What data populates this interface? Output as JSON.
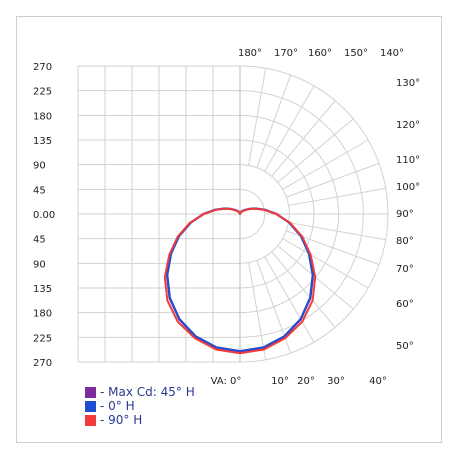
{
  "chart_data": {
    "type": "polar",
    "left_scale_labels": [
      "270",
      "225",
      "180",
      "135",
      "90",
      "45",
      "0.00",
      "45",
      "90",
      "135",
      "180",
      "225",
      "270"
    ],
    "top_angle_labels": [
      "180°",
      "170°",
      "160°",
      "150°",
      "140°"
    ],
    "right_angle_labels": [
      "130°",
      "120°",
      "110°",
      "100°",
      "90°",
      "80°",
      "70°",
      "60°",
      "50°"
    ],
    "bottom_angle_labels": [
      "VA: 0°",
      "10°",
      "20°",
      "30°",
      "40°"
    ],
    "series": [
      {
        "name": "- Max Cd: 45° H",
        "color": "#7b2d9e",
        "points": [
          [
            0,
            252
          ],
          [
            10,
            248
          ],
          [
            20,
            238
          ],
          [
            30,
            222
          ],
          [
            40,
            200
          ],
          [
            50,
            174
          ],
          [
            60,
            146
          ],
          [
            70,
            119
          ],
          [
            80,
            92
          ],
          [
            90,
            67
          ],
          [
            100,
            46
          ],
          [
            110,
            30
          ],
          [
            120,
            19
          ],
          [
            130,
            12
          ],
          [
            140,
            8
          ],
          [
            150,
            5
          ],
          [
            160,
            3
          ],
          [
            170,
            1
          ],
          [
            180,
            0
          ]
        ]
      },
      {
        "name": "- 0° H",
        "color": "#1f4fd0",
        "points": [
          [
            0,
            250
          ],
          [
            10,
            247
          ],
          [
            20,
            237
          ],
          [
            30,
            221
          ],
          [
            40,
            199
          ],
          [
            50,
            173
          ],
          [
            60,
            145
          ],
          [
            70,
            118
          ],
          [
            80,
            91
          ],
          [
            90,
            66
          ],
          [
            100,
            45
          ],
          [
            110,
            29
          ],
          [
            120,
            18
          ],
          [
            130,
            11
          ],
          [
            140,
            7
          ],
          [
            150,
            4
          ],
          [
            160,
            2
          ],
          [
            170,
            1
          ],
          [
            180,
            0
          ]
        ]
      },
      {
        "name": "- 90° H",
        "color": "#f03c3c",
        "points": [
          [
            0,
            254
          ],
          [
            10,
            251
          ],
          [
            20,
            241
          ],
          [
            30,
            227
          ],
          [
            40,
            206
          ],
          [
            50,
            179
          ],
          [
            60,
            149
          ],
          [
            70,
            121
          ],
          [
            80,
            93
          ],
          [
            90,
            66
          ],
          [
            100,
            44
          ],
          [
            110,
            28
          ],
          [
            120,
            17
          ],
          [
            130,
            10
          ],
          [
            140,
            6
          ],
          [
            150,
            3
          ],
          [
            160,
            2
          ],
          [
            170,
            1
          ],
          [
            180,
            0
          ]
        ]
      }
    ]
  }
}
